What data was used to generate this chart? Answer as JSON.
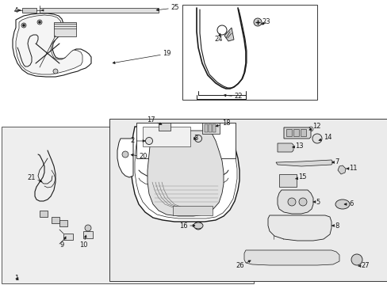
{
  "bg_color": "#ffffff",
  "lc": "#1a1a1a",
  "gray_fill": "#e8e8e8",
  "gray_box": "#ebebeb",
  "fig_width": 4.89,
  "fig_height": 3.6,
  "dpi": 100
}
